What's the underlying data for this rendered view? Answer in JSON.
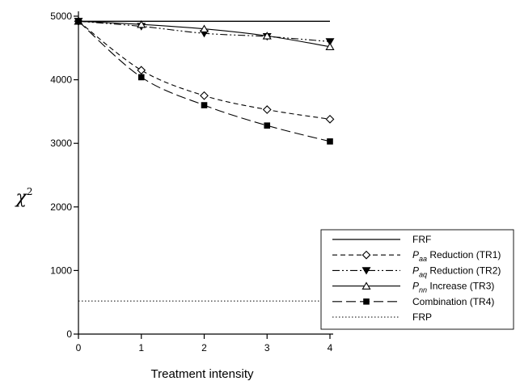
{
  "chart_data": {
    "type": "line",
    "xlabel": "Treatment intensity",
    "ylabel": "χ",
    "ylabel_superscript": "2",
    "x": [
      0,
      1,
      2,
      3,
      4
    ],
    "xlim": [
      0,
      4
    ],
    "ylim": [
      0,
      5000
    ],
    "x_ticks": [
      0,
      1,
      2,
      3,
      4
    ],
    "y_ticks": [
      0,
      1000,
      2000,
      3000,
      4000,
      5000
    ],
    "grid": false,
    "legend_placement": "bottom-right",
    "series": [
      {
        "key": "frf",
        "name": "FRF",
        "label_main": "FRF",
        "label_sub": "",
        "label_rest": "",
        "values": [
          4920,
          4920,
          4920,
          4920,
          4920
        ],
        "dash": "",
        "marker": "none",
        "line_width": 1.3
      },
      {
        "key": "tr1",
        "name": "P_aa Reduction (TR1)",
        "label_main": "P",
        "label_sub": "aa",
        "label_rest": " Reduction (TR1)",
        "values": [
          4920,
          4150,
          3750,
          3530,
          3380
        ],
        "dash": "6,4",
        "marker": "diamond-open",
        "line_width": 1.1
      },
      {
        "key": "tr2",
        "name": "P_aq Reduction (TR2)",
        "label_main": "P",
        "label_sub": "aq",
        "label_rest": " Reduction (TR2)",
        "values": [
          4920,
          4840,
          4730,
          4680,
          4600
        ],
        "dash": "9,3,2,3,2,3",
        "marker": "triangle-down-filled",
        "line_width": 1.1
      },
      {
        "key": "tr3",
        "name": "P_nn Increase (TR3)",
        "label_main": "P",
        "label_sub": "nn",
        "label_rest": " Increase (TR3)",
        "values": [
          4920,
          4870,
          4800,
          4690,
          4520
        ],
        "dash": "",
        "marker": "triangle-up-open",
        "line_width": 1.1
      },
      {
        "key": "tr4",
        "name": "Combination (TR4)",
        "label_main": "Combination (TR4)",
        "label_sub": "",
        "label_rest": "",
        "values": [
          4920,
          4040,
          3600,
          3280,
          3030
        ],
        "dash": "12,5",
        "marker": "square-filled",
        "line_width": 1.1
      },
      {
        "key": "frp",
        "name": "FRP",
        "label_main": "FRP",
        "label_sub": "",
        "label_rest": "",
        "values": [
          520,
          520,
          520,
          520,
          520
        ],
        "dash": "1.5,2.5",
        "marker": "none",
        "line_width": 1.0
      }
    ]
  }
}
